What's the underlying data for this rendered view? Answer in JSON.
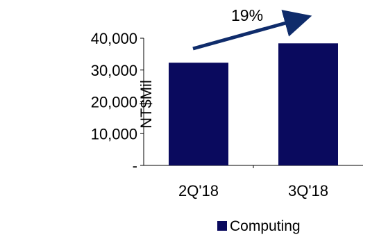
{
  "chart_data": {
    "type": "bar",
    "categories": [
      "2Q'18",
      "3Q'18"
    ],
    "series": [
      {
        "name": "Computing",
        "values": [
          32300,
          38400
        ],
        "color": "#0a0a5e"
      }
    ],
    "ylabel": "NT$Mil",
    "ylim": [
      0,
      40000
    ],
    "yticks": [
      {
        "value": 0,
        "label": "-"
      },
      {
        "value": 10000,
        "label": "10,000"
      },
      {
        "value": 20000,
        "label": "20,000"
      },
      {
        "value": 30000,
        "label": "30,000"
      },
      {
        "value": 40000,
        "label": "40,000"
      }
    ],
    "annotation": {
      "label": "19%",
      "color": "#0f2c6b"
    },
    "legend": {
      "placement": "bottom-right"
    },
    "grid": false
  }
}
